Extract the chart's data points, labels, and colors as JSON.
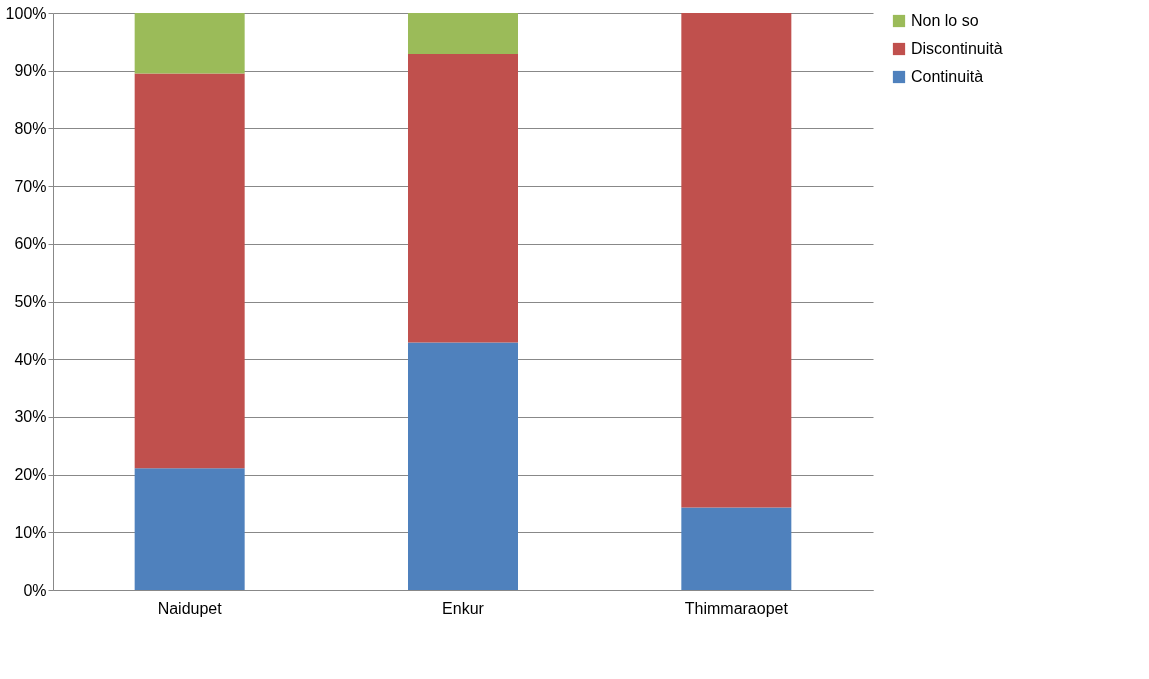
{
  "chart_data": {
    "type": "bar",
    "stacked": true,
    "categories": [
      "Naidupet",
      "Enkur",
      "Thimmaraopet"
    ],
    "series": [
      {
        "name": "Continuità",
        "color": "#4f81bd",
        "values": [
          21.1,
          42.9,
          14.3
        ]
      },
      {
        "name": "Discontinuità",
        "color": "#c0504d",
        "values": [
          68.4,
          50.0,
          85.7
        ]
      },
      {
        "name": "Non lo so",
        "color": "#9bbb59",
        "values": [
          10.5,
          7.1,
          0
        ]
      }
    ],
    "ylim": [
      0,
      100
    ],
    "yticks": [
      {
        "value": 0,
        "label": "0%"
      },
      {
        "value": 10,
        "label": "10%"
      },
      {
        "value": 20,
        "label": "20%"
      },
      {
        "value": 30,
        "label": "30%"
      },
      {
        "value": 40,
        "label": "40%"
      },
      {
        "value": 50,
        "label": "50%"
      },
      {
        "value": 60,
        "label": "60%"
      },
      {
        "value": 70,
        "label": "70%"
      },
      {
        "value": 80,
        "label": "80%"
      },
      {
        "value": 90,
        "label": "90%"
      },
      {
        "value": 100,
        "label": "100%"
      }
    ],
    "grid": "y",
    "legend": "right"
  }
}
